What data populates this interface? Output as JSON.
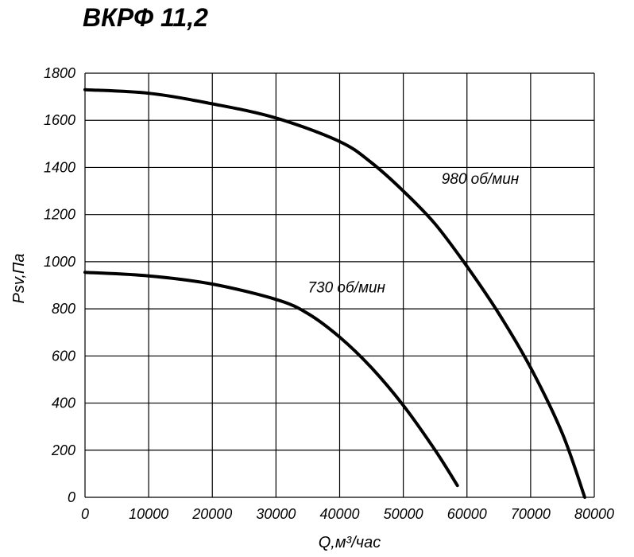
{
  "chart_data": {
    "type": "line",
    "title": "ВКРФ 11,2",
    "xlabel": "Q,м³/час",
    "ylabel": "Psv,Па",
    "xlim": [
      0,
      80000
    ],
    "ylim": [
      0,
      1800
    ],
    "xticks": [
      "0",
      "10000",
      "20000",
      "30000",
      "40000",
      "50000",
      "60000",
      "70000",
      "80000"
    ],
    "yticks": [
      "0",
      "200",
      "400",
      "600",
      "800",
      "1000",
      "1200",
      "1400",
      "1600",
      "1800"
    ],
    "grid": true,
    "series": [
      {
        "name": "980 об/мин",
        "x": [
          0,
          10000,
          20000,
          30000,
          40000,
          45000,
          50000,
          55000,
          60000,
          65000,
          70000,
          75000,
          78500
        ],
        "y": [
          1730,
          1715,
          1670,
          1610,
          1510,
          1420,
          1300,
          1160,
          980,
          780,
          550,
          270,
          0
        ]
      },
      {
        "name": "730 об/мин",
        "x": [
          0,
          10000,
          20000,
          30000,
          35000,
          40000,
          45000,
          50000,
          55000,
          58500
        ],
        "y": [
          955,
          940,
          905,
          840,
          780,
          680,
          550,
          390,
          200,
          50
        ]
      }
    ]
  }
}
